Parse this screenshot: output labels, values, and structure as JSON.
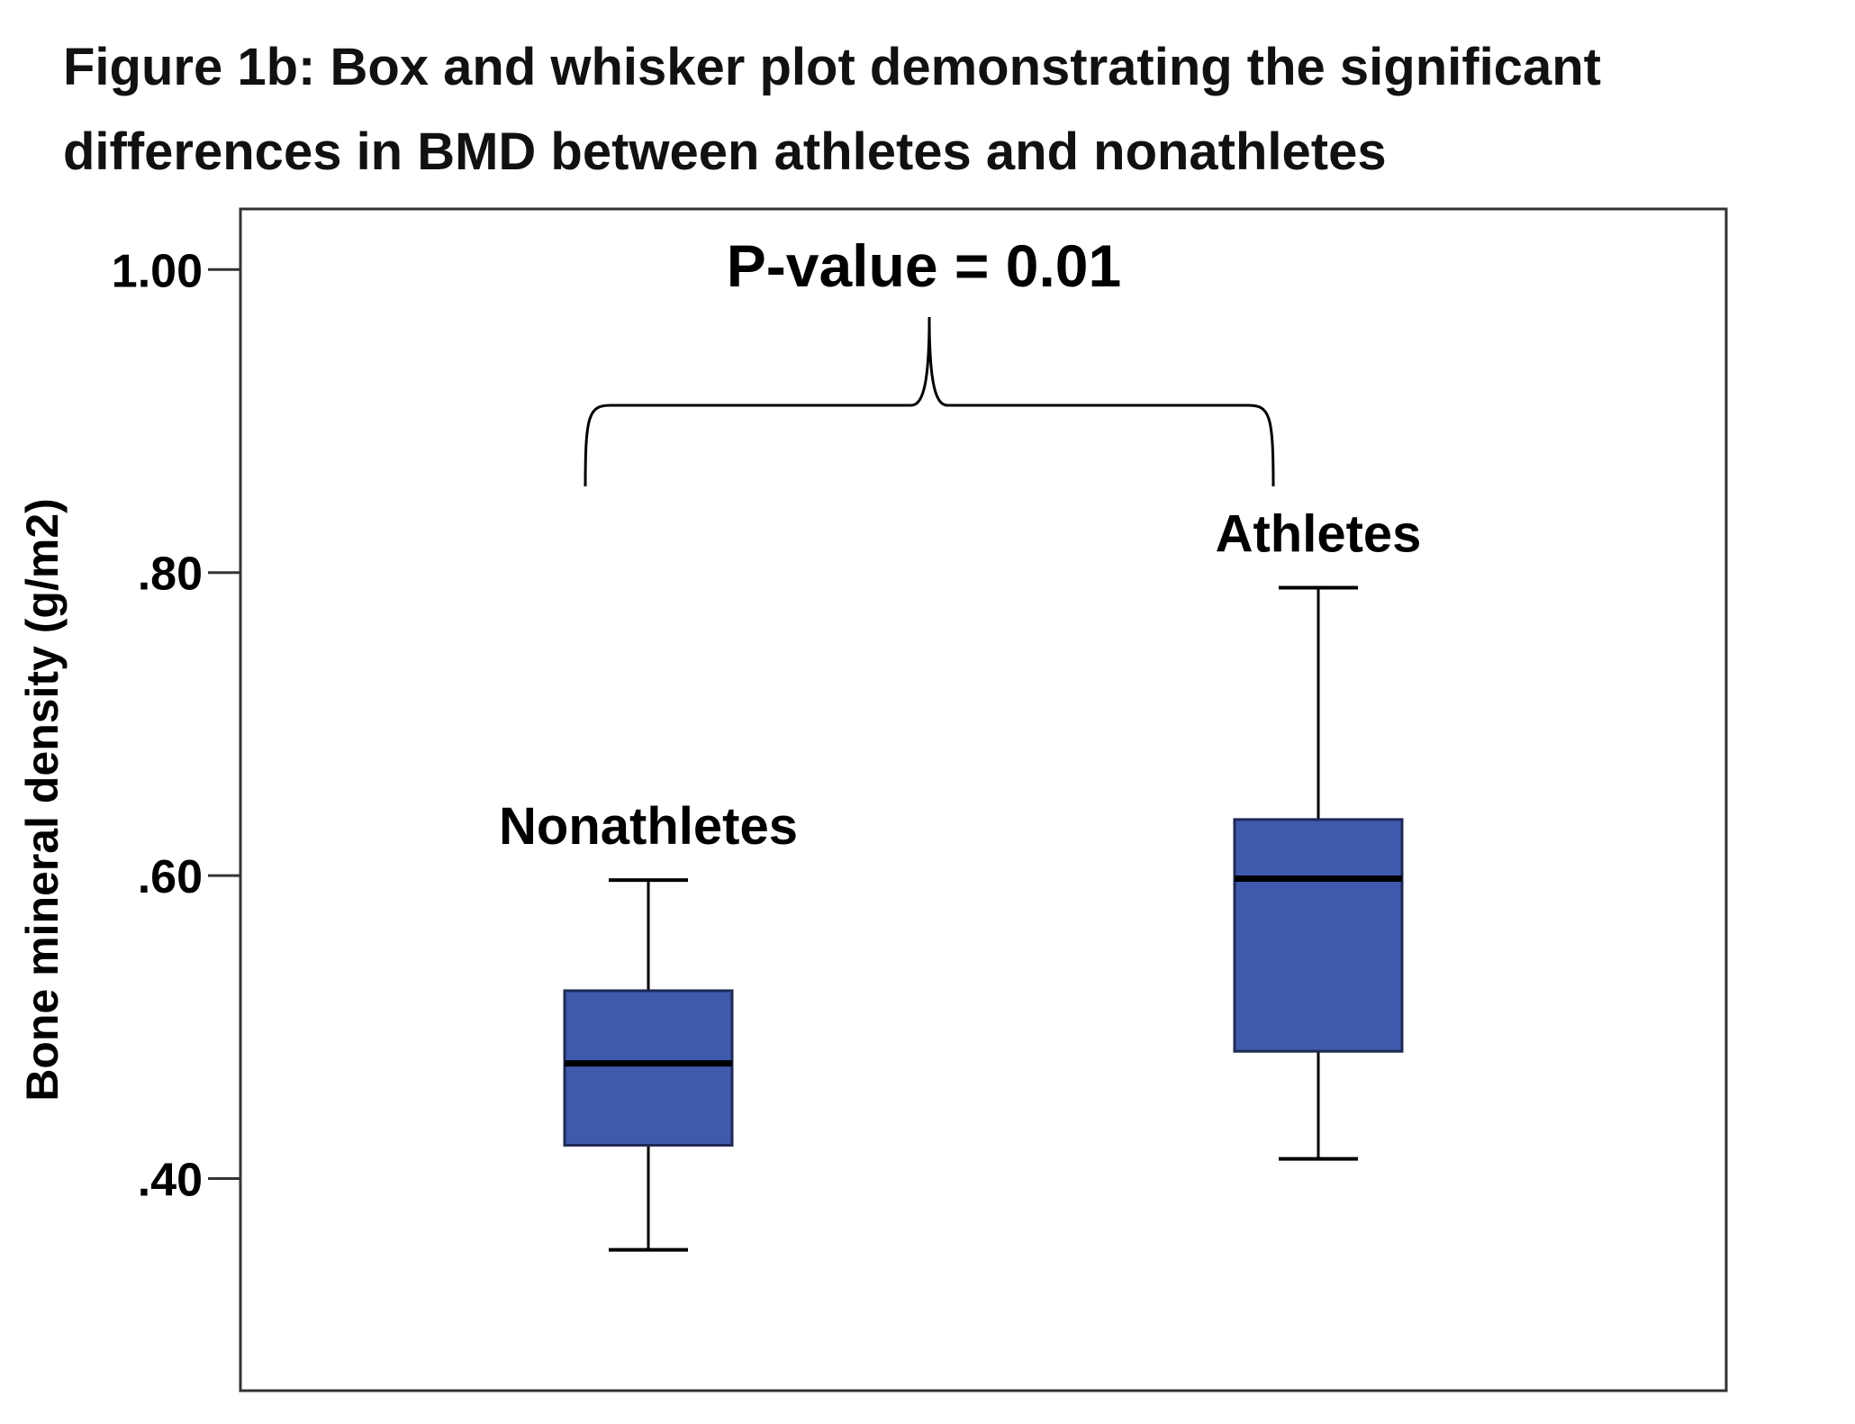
{
  "figure": {
    "title_line1": "Figure 1b: Box and whisker plot demonstrating the significant",
    "title_line2": "differences in BMD between athletes and nonathletes"
  },
  "chart_data": {
    "type": "box",
    "ylabel": "Bone mineral density (g/m2)",
    "xlabel": "",
    "ylim": [
      0.26,
      1.04
    ],
    "yticks": [
      {
        "value": 0.4,
        "label": ".40"
      },
      {
        "value": 0.6,
        "label": ".60"
      },
      {
        "value": 0.8,
        "label": ".80"
      },
      {
        "value": 1.0,
        "label": "1.00"
      }
    ],
    "grid": false,
    "series": [
      {
        "name": "Nonathletes",
        "min": 0.353,
        "q1": 0.422,
        "median": 0.476,
        "q3": 0.524,
        "max": 0.597
      },
      {
        "name": "Athletes",
        "min": 0.413,
        "q1": 0.484,
        "median": 0.598,
        "q3": 0.637,
        "max": 0.79
      }
    ],
    "annotation": {
      "text": "P-value = 0.01",
      "connects": [
        "Nonathletes",
        "Athletes"
      ]
    },
    "colors": {
      "box_fill": "#3f59ac",
      "box_stroke": "#1f2a55",
      "median": "#000000",
      "whisker": "#000000",
      "frame": "#333333"
    }
  }
}
